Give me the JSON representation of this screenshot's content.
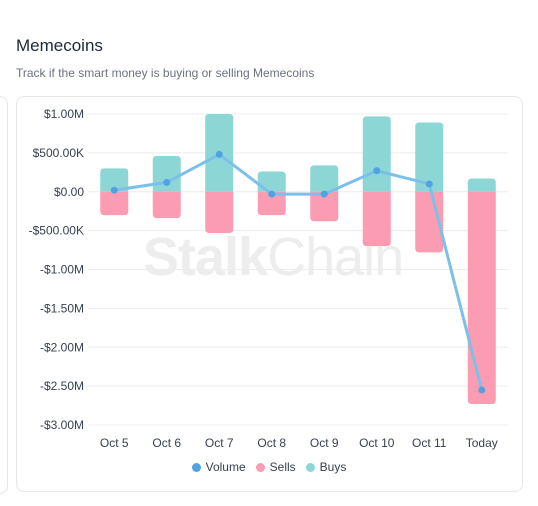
{
  "header": {
    "title": "Memecoins",
    "subtitle": "Track if the smart money is buying or selling Memecoins"
  },
  "watermark": {
    "part1": "Stalk",
    "part2": "Chain"
  },
  "colors": {
    "volume": "#7cc0ea",
    "volume_point": "#4fa3e0",
    "sells": "#fc9cb2",
    "buys": "#8dd6d6",
    "grid": "#ececec",
    "tick_text": "#374151"
  },
  "chart_data": {
    "type": "bar",
    "categories": [
      "Oct 5",
      "Oct 6",
      "Oct 7",
      "Oct 8",
      "Oct 9",
      "Oct 10",
      "Oct 11",
      "Today"
    ],
    "series": [
      {
        "name": "Volume",
        "type": "line",
        "values": [
          20000,
          120000,
          480000,
          -30000,
          -30000,
          270000,
          100000,
          -2550000
        ]
      },
      {
        "name": "Sells",
        "type": "bar",
        "values": [
          -300000,
          -340000,
          -530000,
          -300000,
          -380000,
          -700000,
          -780000,
          -2730000
        ]
      },
      {
        "name": "Buys",
        "type": "bar",
        "values": [
          300000,
          460000,
          1000000,
          260000,
          340000,
          970000,
          890000,
          170000
        ]
      }
    ],
    "stacked": true,
    "ylim": [
      -3000000,
      1000000
    ],
    "y_ticks": [
      {
        "value": 1000000,
        "label": "$1.00M"
      },
      {
        "value": 500000,
        "label": "$500.00K"
      },
      {
        "value": 0,
        "label": "$0.00"
      },
      {
        "value": -500000,
        "label": "-$500.00K"
      },
      {
        "value": -1000000,
        "label": "-$1.00M"
      },
      {
        "value": -1500000,
        "label": "-$1.50M"
      },
      {
        "value": -2000000,
        "label": "-$2.00M"
      },
      {
        "value": -2500000,
        "label": "-$2.50M"
      },
      {
        "value": -3000000,
        "label": "-$3.00M"
      }
    ],
    "grid": true,
    "legend_position": "bottom-center"
  }
}
